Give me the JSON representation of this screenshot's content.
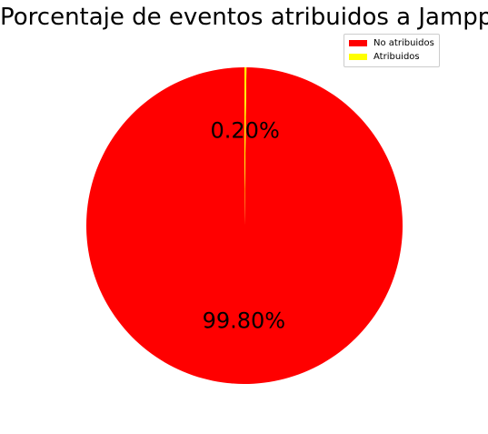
{
  "chart_data": {
    "type": "pie",
    "title": "Porcentaje de eventos atribuidos a Jampp",
    "slices": [
      {
        "label": "No atribuidos",
        "value": 99.8,
        "display": "99.80%",
        "color": "#ff0000"
      },
      {
        "label": "Atribuidos",
        "value": 0.2,
        "display": "0.20%",
        "color": "#ffff00"
      }
    ],
    "start_angle_deg": 90,
    "direction": "counterclockwise",
    "legend": {
      "position": "top-right"
    }
  }
}
